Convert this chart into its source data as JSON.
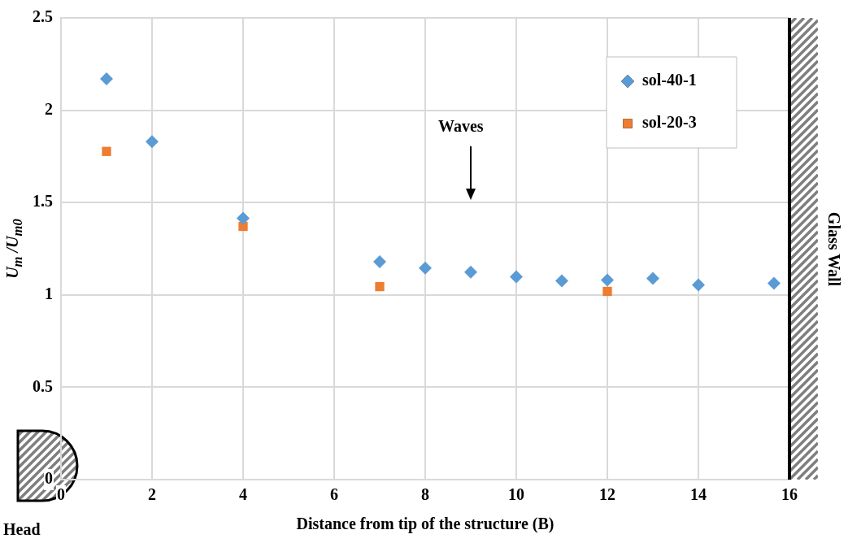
{
  "chart_data": {
    "type": "scatter",
    "xlabel": "Distance from tip of the structure (B)",
    "ylabel": "U$_{m}$ /U$_{m0}$",
    "xlim": [
      0,
      16
    ],
    "xticks": [
      0,
      2,
      4,
      6,
      8,
      10,
      12,
      14,
      16
    ],
    "ylim": [
      0,
      2.5
    ],
    "yticks": [
      0,
      0.5,
      1,
      1.5,
      2,
      2.5
    ],
    "grid": true,
    "legend": "top right",
    "series": [
      {
        "name": "sol-40-1",
        "color": "#5b9bd5",
        "marker": "diamond",
        "x": [
          1,
          2,
          4,
          7,
          8,
          9,
          10,
          11,
          12,
          13,
          14,
          15.66
        ],
        "values": [
          2.17,
          1.83,
          1.415,
          1.18,
          1.146,
          1.124,
          1.098,
          1.076,
          1.08,
          1.089,
          1.054,
          1.063
        ]
      },
      {
        "name": "sol-20-3",
        "color": "#ed7d31",
        "marker": "square",
        "x": [
          1,
          4,
          7,
          12
        ],
        "values": [
          1.777,
          1.371,
          1.045,
          1.019
        ]
      }
    ],
    "annotations": [
      "Waves",
      "Glass Wall",
      "Head"
    ]
  }
}
